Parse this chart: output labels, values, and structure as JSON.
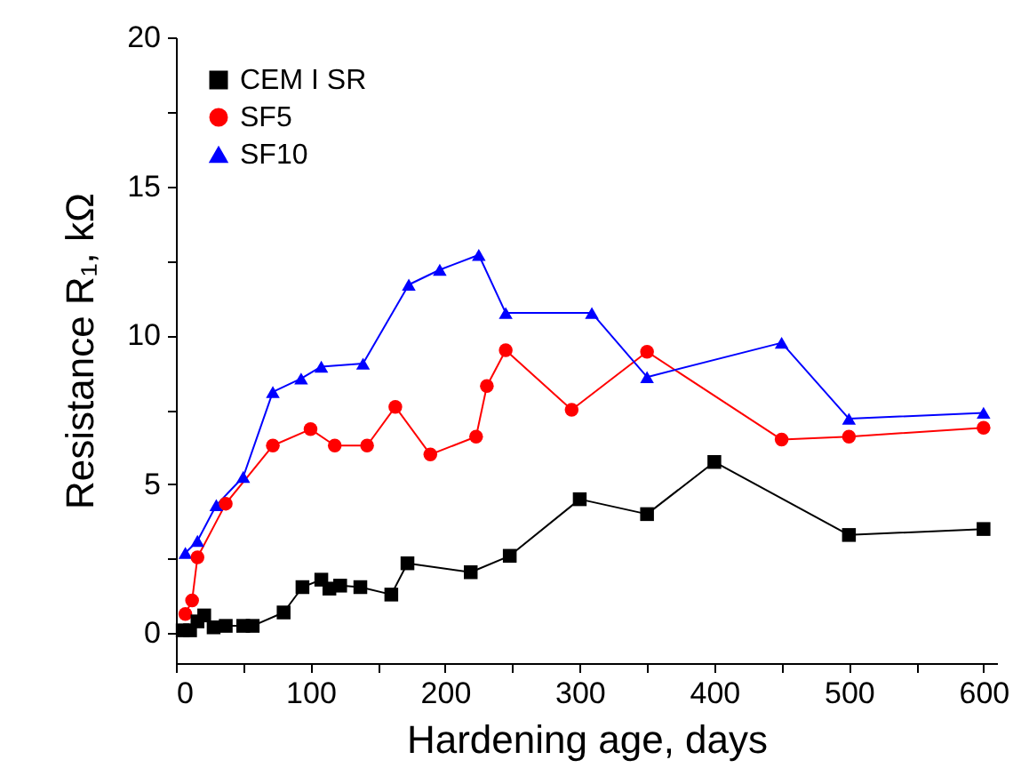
{
  "chart_data": {
    "type": "line",
    "xlabel": "Hardening age, days",
    "ylabel": "Resistance R₁,  kΩ",
    "xlim": [
      0,
      610
    ],
    "ylim": [
      -1,
      20
    ],
    "xticks": [
      0,
      {
        "value": 50,
        "label": null
      },
      100,
      {
        "value": 150,
        "label": null
      },
      200,
      {
        "value": 250,
        "label": null
      },
      300,
      {
        "value": 350,
        "label": null
      },
      400,
      {
        "value": 450,
        "label": null
      },
      500,
      {
        "value": 550,
        "label": null
      },
      600
    ],
    "yticks": [
      0,
      {
        "value": 2.5,
        "label": null
      },
      5,
      {
        "value": 7.5,
        "label": null
      },
      10,
      {
        "value": 12.5,
        "label": null
      },
      15,
      {
        "value": 17.5,
        "label": null
      },
      20
    ],
    "grid": false,
    "legend": "top left",
    "line_style": "solid",
    "series": [
      {
        "name": "CEM I SR",
        "color": "#000000",
        "marker": "square",
        "x": [
          5,
          10.5,
          16,
          21,
          28,
          37,
          50,
          57,
          80,
          94,
          108,
          114,
          122,
          137,
          160,
          172,
          219,
          248,
          300,
          350,
          400,
          500,
          600
        ],
        "values": [
          0.1,
          0.1,
          0.4,
          0.6,
          0.2,
          0.25,
          0.25,
          0.25,
          0.7,
          1.55,
          1.8,
          1.5,
          1.6,
          1.55,
          1.3,
          2.35,
          2.05,
          2.6,
          4.5,
          4.0,
          5.75,
          3.3,
          3.5
        ]
      },
      {
        "name": "SF5",
        "color": "#ff0000",
        "marker": "circle",
        "x": [
          7,
          12,
          16,
          37,
          72,
          100,
          118,
          142,
          163,
          189,
          223,
          231,
          245,
          294,
          350,
          450,
          500,
          600
        ],
        "values": [
          0.65,
          1.1,
          2.55,
          4.35,
          6.3,
          6.85,
          6.3,
          6.3,
          7.6,
          6.0,
          6.6,
          8.3,
          9.5,
          7.5,
          9.45,
          6.5,
          6.6,
          6.9
        ]
      },
      {
        "name": "SF10",
        "color": "#0000ff",
        "marker": "triangle",
        "x": [
          7,
          16,
          30,
          50,
          72,
          93,
          108,
          139,
          173,
          196,
          225,
          245,
          309,
          350,
          450,
          500,
          600
        ],
        "values": [
          2.7,
          3.1,
          4.3,
          5.25,
          8.1,
          8.55,
          8.95,
          9.05,
          11.7,
          12.2,
          12.7,
          10.75,
          10.75,
          8.6,
          9.75,
          7.2,
          7.4
        ]
      }
    ]
  }
}
